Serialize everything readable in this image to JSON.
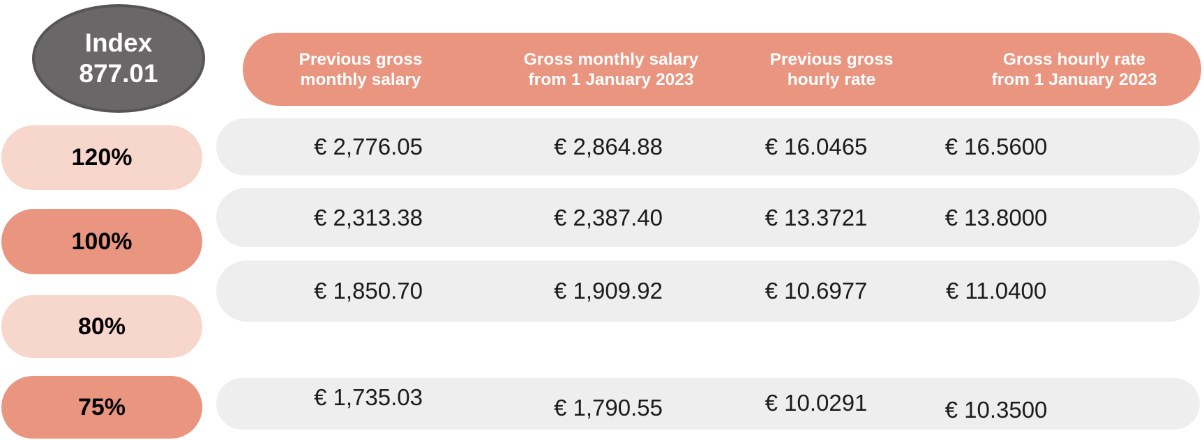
{
  "index_badge": {
    "text": "Index\n877.01"
  },
  "columns": [
    "Previous gross\nmonthly salary",
    "Gross monthly salary\nfrom 1 January 2023",
    "Previous gross\nhourly rate",
    "Gross hourly rate\nfrom 1 January 2023"
  ],
  "rows": [
    {
      "label": "120%",
      "tone": "light",
      "values": [
        "€ 2,776.05",
        "€ 2,864.88",
        "€ 16.0465",
        "€ 16.5600"
      ]
    },
    {
      "label": "100%",
      "tone": "dark",
      "values": [
        "€ 2,313.38",
        "€ 2,387.40",
        "€ 13.3721",
        "€ 13.8000"
      ]
    },
    {
      "label": "80%",
      "tone": "light",
      "values": [
        "€ 1,850.70",
        "€ 1,909.92",
        "€ 10.6977",
        "€ 11.0400"
      ]
    },
    {
      "label": "75%",
      "tone": "dark",
      "values": [
        "€ 1,735.03",
        "€ 1,790.55",
        "€ 10.0291",
        "€ 10.3500"
      ]
    }
  ],
  "colors": {
    "salmon": "#E9957F",
    "light_pink": "#F7D6CC",
    "row_gray": "#EFEEEE",
    "badge_gray": "#6A6768",
    "badge_ring": "#575455",
    "text_dark": "#1B1B1B",
    "text_white": "#FFFFFF"
  },
  "chart_data": {
    "type": "table",
    "title": "Index 877.01",
    "columns": [
      "Previous gross monthly salary",
      "Gross monthly salary from 1 January 2023",
      "Previous gross hourly rate",
      "Gross hourly rate from 1 January 2023"
    ],
    "row_labels": [
      "120%",
      "100%",
      "80%",
      "75%"
    ],
    "rows": [
      [
        "€ 2,776.05",
        "€ 2,864.88",
        "€ 16.0465",
        "€ 16.5600"
      ],
      [
        "€ 2,313.38",
        "€ 2,387.40",
        "€ 13.3721",
        "€ 13.8000"
      ],
      [
        "€ 1,850.70",
        "€ 1,909.92",
        "€ 10.6977",
        "€ 11.0400"
      ],
      [
        "€ 1,735.03",
        "€ 1,790.55",
        "€ 10.0291",
        "€ 10.3500"
      ]
    ],
    "numeric_rows": [
      [
        2776.05,
        2864.88,
        16.0465,
        16.56
      ],
      [
        2313.38,
        2387.4,
        13.3721,
        13.8
      ],
      [
        1850.7,
        1909.92,
        10.6977,
        11.04
      ],
      [
        1735.03,
        1790.55,
        10.0291,
        10.35
      ]
    ],
    "currency": "EUR",
    "index_value": 877.01
  }
}
